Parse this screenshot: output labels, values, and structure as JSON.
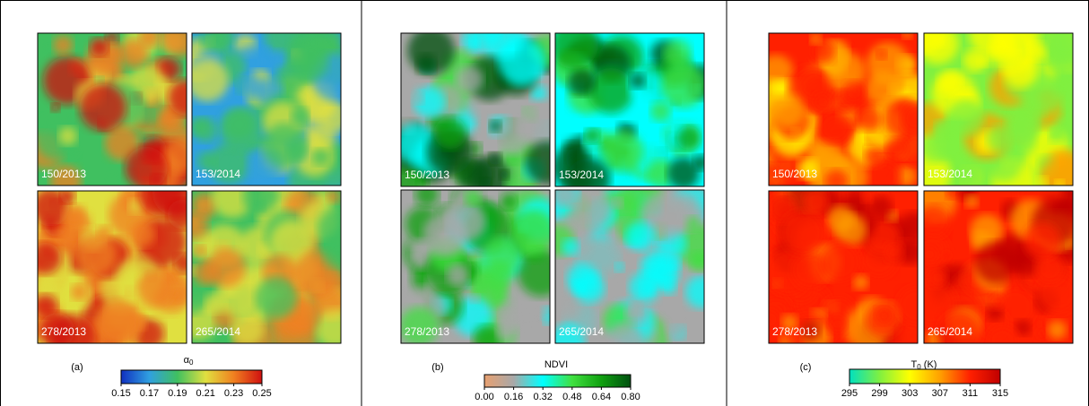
{
  "panels": [
    {
      "label": "(a)",
      "images": [
        "150/2013",
        "153/2014",
        "278/2013",
        "265/2014"
      ],
      "colorbar": {
        "title": {
          "main": "α",
          "sub": "0"
        },
        "lim": [
          0.15,
          0.25
        ],
        "ticks": [
          0.15,
          0.17,
          0.19,
          0.21,
          0.23,
          0.25
        ],
        "colors": [
          "#1030c0",
          "#30a0e0",
          "#40c060",
          "#e0e040",
          "#f08020",
          "#d01010"
        ]
      }
    },
    {
      "label": "(b)",
      "images": [
        "150/2013",
        "153/2014",
        "278/2013",
        "265/2014"
      ],
      "colorbar": {
        "title": {
          "main": "NDVI"
        },
        "lim": [
          0,
          0.8
        ],
        "ticks": [
          {
            "value": 0,
            "label": "0.00"
          },
          0.16,
          0.32,
          0.48,
          0.64,
          {
            "value": 0.8,
            "label": "0.80"
          }
        ],
        "colors": [
          "#e8a070",
          "#a8a8a8",
          "#00ffff",
          "#40e040",
          "#10a010",
          "#005010"
        ]
      }
    },
    {
      "label": "(c)",
      "images": [
        "150/2013",
        "153/2014",
        "278/2013",
        "265/2014"
      ],
      "colorbar": {
        "title": {
          "main": "T",
          "sub": "0",
          "suffix": " (K)"
        },
        "lim": [
          295,
          315
        ],
        "ticks": [
          295,
          299,
          303,
          307,
          311,
          315
        ],
        "colors": [
          "#00e0c0",
          "#80f040",
          "#ffff00",
          "#ffa000",
          "#ff2000",
          "#c00000"
        ]
      }
    }
  ]
}
